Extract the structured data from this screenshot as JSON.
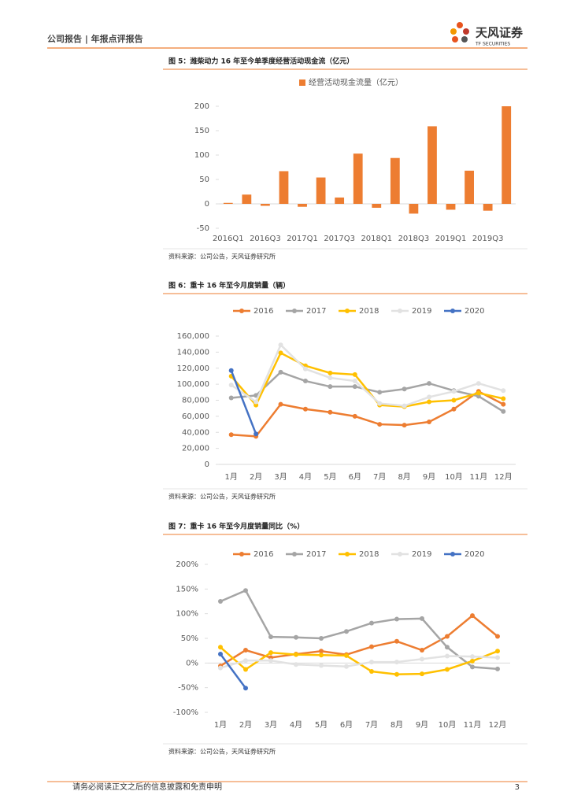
{
  "header": {
    "left": "公司报告 | 年报点评报告",
    "logo": "天风证券",
    "logo_en": "TF SECURITIES"
  },
  "chart_data": [
    {
      "type": "bar",
      "title": "图 5：潍柴动力 16 年至今单季度经营活动现金流（亿元）",
      "categories": [
        "2016Q1",
        null,
        "2016Q3",
        null,
        "2017Q1",
        null,
        "2017Q3",
        null,
        "2018Q1",
        null,
        "2018Q3",
        null,
        "2019Q1",
        null,
        "2019Q3",
        null
      ],
      "series": [
        {
          "name": "经营活动现金流量（亿元）",
          "color": "#ed7d31",
          "values": [
            2,
            19,
            -4,
            67,
            -6,
            54,
            13,
            103,
            -8,
            94,
            -20,
            159,
            -12,
            68,
            -14,
            200
          ]
        }
      ],
      "ylim": [
        -50,
        200
      ],
      "yticks": [
        -50,
        0,
        50,
        100,
        150,
        200
      ],
      "source": "资料来源：公司公告，天风证券研究所"
    },
    {
      "type": "line",
      "title": "图 6：重卡 16 年至今月度销量（辆）",
      "categories": [
        "1月",
        "2月",
        "3月",
        "4月",
        "5月",
        "6月",
        "7月",
        "8月",
        "9月",
        "10月",
        "11月",
        "12月"
      ],
      "series": [
        {
          "name": "2016",
          "color": "#ed7d31",
          "values": [
            37000,
            35000,
            75000,
            69000,
            65000,
            60000,
            50000,
            49000,
            53000,
            69000,
            91000,
            75000
          ]
        },
        {
          "name": "2017",
          "color": "#a5a5a5",
          "values": [
            83000,
            86000,
            115000,
            104000,
            97000,
            97000,
            90000,
            94000,
            101000,
            92000,
            85000,
            66000
          ]
        },
        {
          "name": "2018",
          "color": "#ffc000",
          "values": [
            110000,
            74000,
            139000,
            123000,
            114000,
            112000,
            74000,
            72000,
            78000,
            80000,
            89000,
            82000
          ]
        },
        {
          "name": "2019",
          "color": "#e2e2e2",
          "values": [
            99000,
            78000,
            149000,
            119000,
            108000,
            104000,
            76000,
            73000,
            84000,
            91000,
            101000,
            92000
          ]
        },
        {
          "name": "2020",
          "color": "#4472c4",
          "values": [
            117000,
            38000,
            null,
            null,
            null,
            null,
            null,
            null,
            null,
            null,
            null,
            null
          ]
        }
      ],
      "ylim": [
        0,
        160000
      ],
      "yticks": [
        0,
        {
          "value": 20000,
          "label": "20,000"
        },
        {
          "value": 40000,
          "label": "40,000"
        },
        {
          "value": 60000,
          "label": "60,000"
        },
        {
          "value": 80000,
          "label": "80,000"
        },
        {
          "value": 100000,
          "label": "100,000"
        },
        {
          "value": 120000,
          "label": "120,000"
        },
        {
          "value": 140000,
          "label": "140,000"
        },
        {
          "value": 160000,
          "label": "160,000"
        }
      ],
      "source": "资料来源：公司公告，天风证券研究所"
    },
    {
      "type": "line",
      "title": "图 7：重卡 16 年至今月度销量同比（%）",
      "categories": [
        "1月",
        "2月",
        "3月",
        "4月",
        "5月",
        "6月",
        "7月",
        "8月",
        "9月",
        "10月",
        "11月",
        "12月"
      ],
      "series": [
        {
          "name": "2016",
          "color": "#ed7d31",
          "values": [
            -6,
            26,
            11,
            18,
            24,
            17,
            33,
            44,
            26,
            54,
            96,
            54
          ]
        },
        {
          "name": "2017",
          "color": "#a5a5a5",
          "values": [
            125,
            147,
            53,
            52,
            50,
            64,
            81,
            89,
            90,
            32,
            -8,
            -12
          ]
        },
        {
          "name": "2018",
          "color": "#ffc000",
          "values": [
            32,
            -13,
            21,
            17,
            16,
            15,
            -17,
            -23,
            -22,
            -13,
            4,
            24
          ]
        },
        {
          "name": "2019",
          "color": "#e2e2e2",
          "values": [
            -10,
            5,
            5,
            -3,
            -5,
            -7,
            2,
            2,
            8,
            14,
            13,
            11
          ]
        },
        {
          "name": "2020",
          "color": "#4472c4",
          "values": [
            18,
            -51,
            null,
            null,
            null,
            null,
            null,
            null,
            null,
            null,
            null,
            null
          ]
        }
      ],
      "ylim": [
        -100,
        200
      ],
      "yticks": [
        {
          "value": -100,
          "label": "-100%"
        },
        {
          "value": -50,
          "label": "-50%"
        },
        {
          "value": 0,
          "label": "0%"
        },
        {
          "value": 50,
          "label": "50%"
        },
        {
          "value": 100,
          "label": "100%"
        },
        {
          "value": 150,
          "label": "150%"
        },
        {
          "value": 200,
          "label": "200%"
        }
      ],
      "source": "资料来源：公司公告，天风证券研究所"
    }
  ],
  "footer": {
    "disclaimer": "请务必阅读正文之后的信息披露和免责申明",
    "page": "3"
  }
}
